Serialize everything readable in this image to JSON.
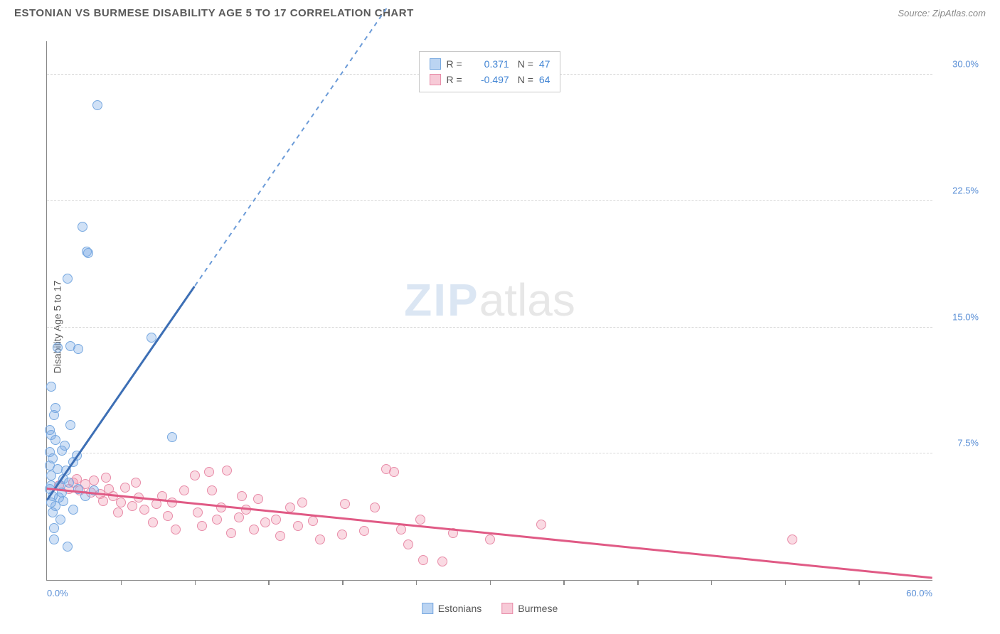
{
  "header": {
    "title": "ESTONIAN VS BURMESE DISABILITY AGE 5 TO 17 CORRELATION CHART",
    "source_prefix": "Source: ",
    "source": "ZipAtlas.com"
  },
  "chart": {
    "type": "scatter",
    "ylabel": "Disability Age 5 to 17",
    "xlim": [
      0,
      60
    ],
    "ylim": [
      0,
      32
    ],
    "background_color": "#ffffff",
    "grid_color": "#d8d8d8",
    "axis_color": "#888888",
    "tick_label_color": "#5a8fd6",
    "ytick_labels": [
      {
        "v": 7.5,
        "label": "7.5%"
      },
      {
        "v": 15.0,
        "label": "15.0%"
      },
      {
        "v": 22.5,
        "label": "22.5%"
      },
      {
        "v": 30.0,
        "label": "30.0%"
      }
    ],
    "xticks_minor": [
      5,
      10,
      15,
      20,
      25,
      30,
      35,
      40,
      45,
      50,
      55
    ],
    "xtick_labels": [
      {
        "v": 0,
        "label": "0.0%",
        "cls": "first"
      },
      {
        "v": 60,
        "label": "60.0%",
        "cls": "last"
      }
    ],
    "watermark": {
      "bold": "ZIP",
      "rest": "atlas"
    }
  },
  "stats": {
    "series_a": {
      "R": "0.371",
      "N": "47"
    },
    "series_b": {
      "R": "-0.497",
      "N": "64"
    }
  },
  "legend_bottom": {
    "a": "Estonians",
    "b": "Burmese"
  },
  "series_a": {
    "name": "Estonians",
    "color_fill": "rgba(120,170,230,0.35)",
    "color_stroke": "#77a8e0",
    "marker_size": 14,
    "trend_color": "#3d6fb5",
    "trend": {
      "x1": 0,
      "y1": 4.8,
      "x2": 10,
      "y2": 17.5,
      "x1d": 10,
      "y1d": 17.5,
      "x2d": 23,
      "y2d": 34
    },
    "points": [
      [
        0.2,
        5.4
      ],
      [
        0.3,
        5.6
      ],
      [
        0.3,
        6.2
      ],
      [
        0.2,
        6.8
      ],
      [
        0.4,
        7.2
      ],
      [
        0.2,
        7.6
      ],
      [
        0.6,
        8.3
      ],
      [
        0.3,
        8.6
      ],
      [
        0.5,
        9.8
      ],
      [
        0.6,
        10.2
      ],
      [
        0.3,
        11.5
      ],
      [
        0.8,
        4.9
      ],
      [
        1.0,
        5.2
      ],
      [
        1.1,
        6.0
      ],
      [
        1.3,
        6.5
      ],
      [
        1.5,
        5.8
      ],
      [
        1.8,
        7.0
      ],
      [
        1.2,
        8.0
      ],
      [
        0.9,
        3.6
      ],
      [
        0.5,
        2.4
      ],
      [
        1.4,
        2.0
      ],
      [
        2.1,
        5.4
      ],
      [
        2.0,
        7.4
      ],
      [
        2.6,
        5.0
      ],
      [
        3.2,
        5.3
      ],
      [
        1.8,
        4.2
      ],
      [
        0.6,
        4.4
      ],
      [
        0.4,
        5.0
      ],
      [
        0.9,
        5.6
      ],
      [
        1.1,
        4.7
      ],
      [
        1.6,
        9.2
      ],
      [
        1.6,
        13.9
      ],
      [
        2.1,
        13.7
      ],
      [
        0.7,
        13.8
      ],
      [
        2.4,
        21.0
      ],
      [
        2.7,
        19.5
      ],
      [
        2.8,
        19.4
      ],
      [
        1.4,
        17.9
      ],
      [
        3.4,
        28.2
      ],
      [
        7.1,
        14.4
      ],
      [
        8.5,
        8.5
      ],
      [
        0.4,
        4.0
      ],
      [
        0.7,
        6.6
      ],
      [
        0.2,
        8.9
      ],
      [
        0.5,
        3.1
      ],
      [
        1.0,
        7.7
      ],
      [
        0.3,
        4.6
      ]
    ]
  },
  "series_b": {
    "name": "Burmese",
    "color_fill": "rgba(240,150,175,0.35)",
    "color_stroke": "#e88ca8",
    "marker_size": 14,
    "trend_color": "#e05a85",
    "trend": {
      "x1": 0,
      "y1": 5.5,
      "x2": 60,
      "y2": 0.2
    },
    "points": [
      [
        0.8,
        5.6
      ],
      [
        1.5,
        5.4
      ],
      [
        1.8,
        5.8
      ],
      [
        2.2,
        5.3
      ],
      [
        2.0,
        6.0
      ],
      [
        2.6,
        5.7
      ],
      [
        3.0,
        5.2
      ],
      [
        3.2,
        5.9
      ],
      [
        3.6,
        5.1
      ],
      [
        3.8,
        4.7
      ],
      [
        4.2,
        5.4
      ],
      [
        4.5,
        5.0
      ],
      [
        4.0,
        6.1
      ],
      [
        5.0,
        4.6
      ],
      [
        5.3,
        5.5
      ],
      [
        5.8,
        4.4
      ],
      [
        6.2,
        4.9
      ],
      [
        6.0,
        5.8
      ],
      [
        6.6,
        4.2
      ],
      [
        7.2,
        3.4
      ],
      [
        7.4,
        4.5
      ],
      [
        7.8,
        5.0
      ],
      [
        8.2,
        3.8
      ],
      [
        8.5,
        4.6
      ],
      [
        8.7,
        3.0
      ],
      [
        10.0,
        6.2
      ],
      [
        10.2,
        4.0
      ],
      [
        10.5,
        3.2
      ],
      [
        11.0,
        6.4
      ],
      [
        11.2,
        5.3
      ],
      [
        11.5,
        3.6
      ],
      [
        11.8,
        4.3
      ],
      [
        12.2,
        6.5
      ],
      [
        12.5,
        2.8
      ],
      [
        13.0,
        3.7
      ],
      [
        13.2,
        5.0
      ],
      [
        13.5,
        4.2
      ],
      [
        14.0,
        3.0
      ],
      [
        14.3,
        4.8
      ],
      [
        14.8,
        3.4
      ],
      [
        15.5,
        3.6
      ],
      [
        15.8,
        2.6
      ],
      [
        16.5,
        4.3
      ],
      [
        17.0,
        3.2
      ],
      [
        17.3,
        4.6
      ],
      [
        18.0,
        3.5
      ],
      [
        18.5,
        2.4
      ],
      [
        20.0,
        2.7
      ],
      [
        20.2,
        4.5
      ],
      [
        21.5,
        2.9
      ],
      [
        22.2,
        4.3
      ],
      [
        23.0,
        6.6
      ],
      [
        23.5,
        6.4
      ],
      [
        24.0,
        3.0
      ],
      [
        24.5,
        2.1
      ],
      [
        25.3,
        3.6
      ],
      [
        25.5,
        1.2
      ],
      [
        26.8,
        1.1
      ],
      [
        27.5,
        2.8
      ],
      [
        30.0,
        2.4
      ],
      [
        33.5,
        3.3
      ],
      [
        50.5,
        2.4
      ],
      [
        4.8,
        4.0
      ],
      [
        9.3,
        5.3
      ]
    ]
  }
}
